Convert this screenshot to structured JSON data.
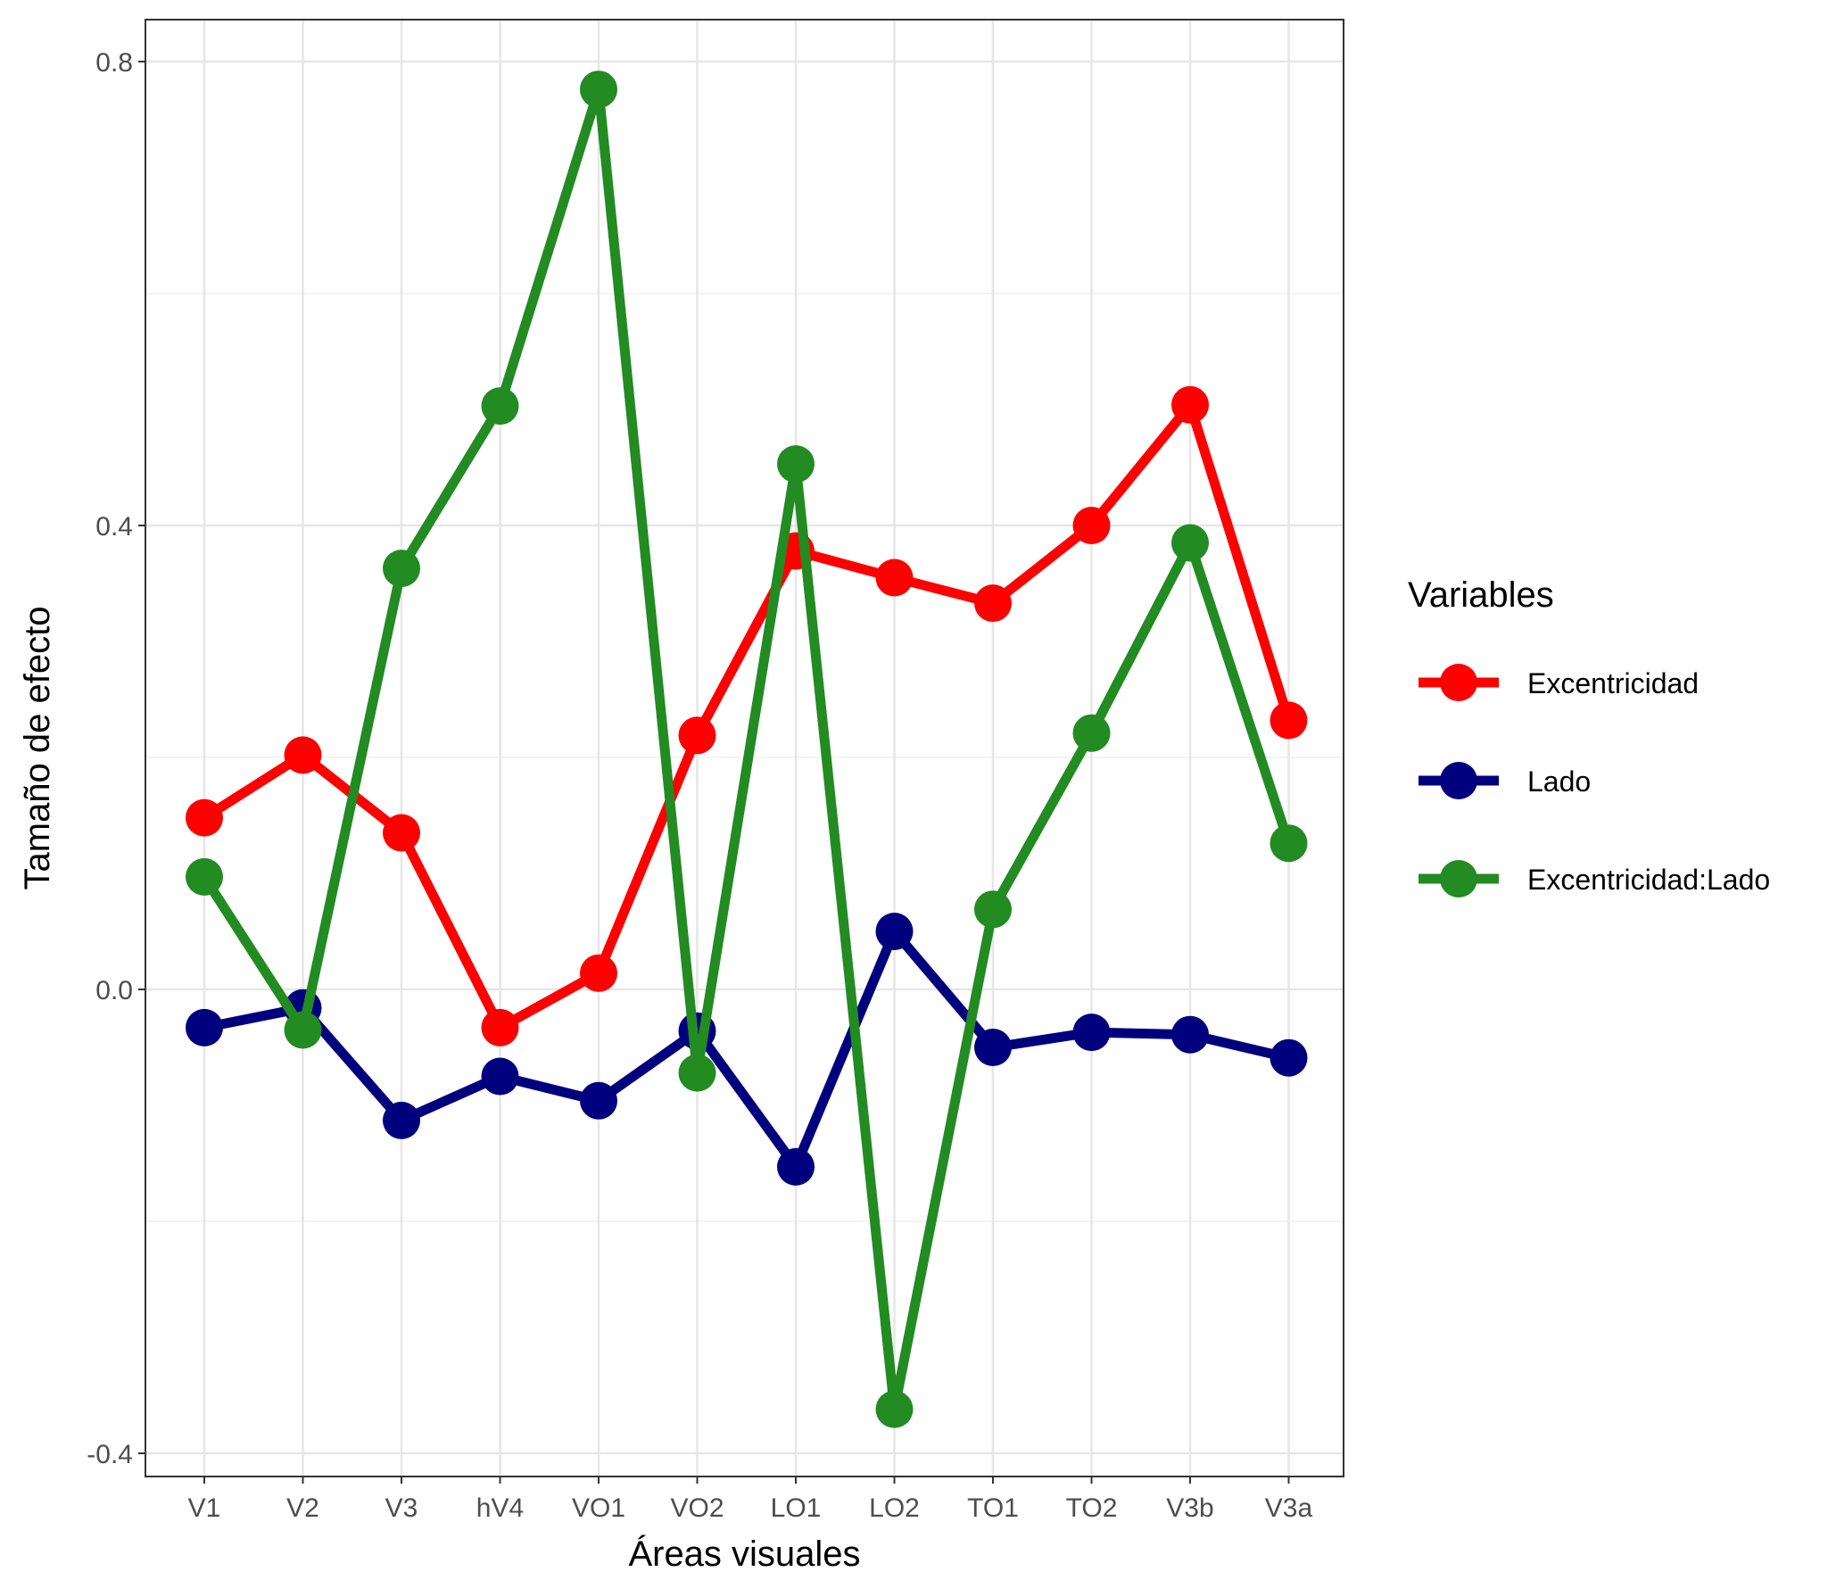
{
  "chart_data": {
    "type": "line",
    "xlabel": "Áreas visuales",
    "ylabel": "Tamaño de efecto",
    "categories": [
      "V1",
      "V2",
      "V3",
      "hV4",
      "VO1",
      "VO2",
      "LO1",
      "LO2",
      "TO1",
      "TO2",
      "V3b",
      "V3a"
    ],
    "ylim": [
      -0.42,
      0.82
    ],
    "yticks": [
      -0.4,
      0.0,
      0.4,
      0.8
    ],
    "ytick_labels": [
      "-0.4",
      "0.0",
      "0.4",
      "0.8"
    ],
    "grid": true,
    "legend": {
      "title": "Variables",
      "position": "right"
    },
    "series": [
      {
        "name": "Excentricidad",
        "color": "#ff0000",
        "values": [
          0.148,
          0.202,
          0.135,
          -0.033,
          0.014,
          0.219,
          0.378,
          0.355,
          0.333,
          0.4,
          0.504,
          0.232
        ]
      },
      {
        "name": "Lado",
        "color": "#00007f",
        "values": [
          -0.033,
          -0.016,
          -0.113,
          -0.075,
          -0.096,
          -0.036,
          -0.153,
          0.05,
          -0.05,
          -0.037,
          -0.039,
          -0.059
        ]
      },
      {
        "name": "Excentricidad:Lado",
        "color": "#228b22",
        "values": [
          0.097,
          -0.035,
          0.363,
          0.503,
          0.776,
          -0.072,
          0.453,
          -0.362,
          0.069,
          0.221,
          0.385,
          0.126
        ]
      }
    ]
  }
}
